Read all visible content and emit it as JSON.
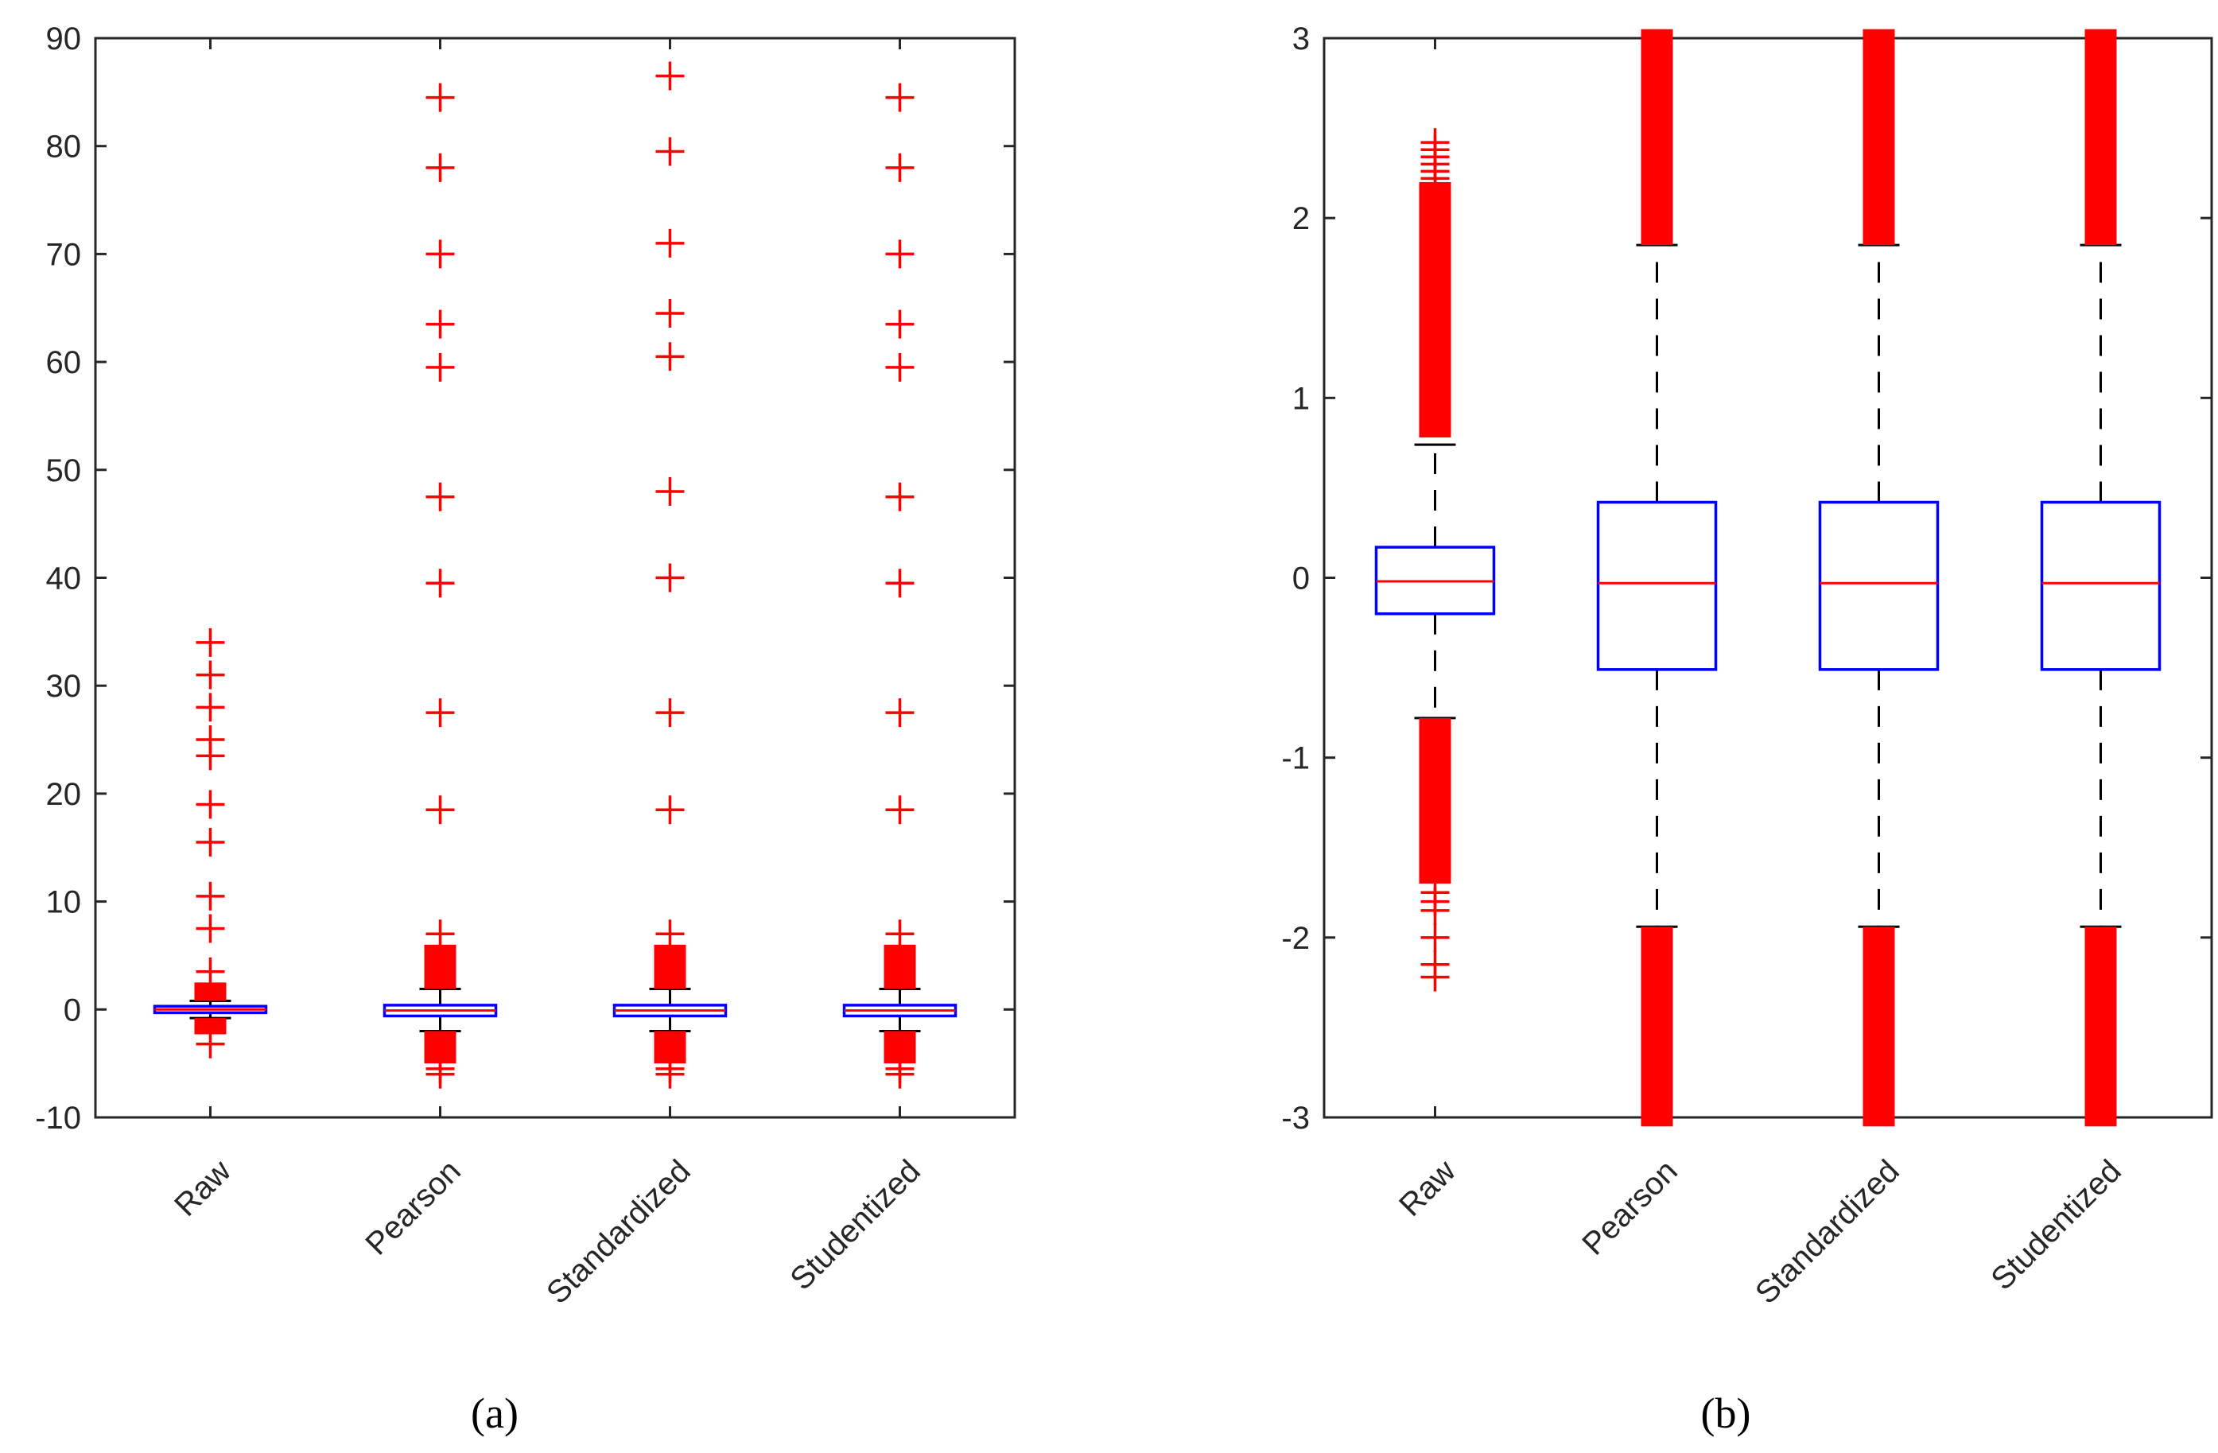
{
  "chart_data": [
    {
      "type": "box",
      "panel_label": "(a)",
      "categories": [
        "Raw",
        "Pearson",
        "Standardized",
        "Studentized"
      ],
      "ylim": [
        -10,
        90
      ],
      "yticks": [
        -10,
        0,
        10,
        20,
        30,
        40,
        50,
        60,
        70,
        80,
        90
      ],
      "xlabel": "",
      "ylabel": "",
      "title": "",
      "boxes": [
        {
          "name": "Raw",
          "q1": -0.3,
          "median": 0,
          "q3": 0.3,
          "whisker_low": -0.8,
          "whisker_high": 0.8
        },
        {
          "name": "Pearson",
          "q1": -0.6,
          "median": -0.1,
          "q3": 0.4,
          "whisker_low": -2.0,
          "whisker_high": 1.9
        },
        {
          "name": "Standardized",
          "q1": -0.6,
          "median": -0.1,
          "q3": 0.4,
          "whisker_low": -2.0,
          "whisker_high": 1.9
        },
        {
          "name": "Studentized",
          "q1": -0.6,
          "median": -0.1,
          "q3": 0.4,
          "whisker_low": -2.0,
          "whisker_high": 1.9
        }
      ],
      "outlier_bands": [
        {
          "name": "Raw",
          "ranges": [
            [
              0.8,
              2.5
            ],
            [
              -2.3,
              -0.8
            ]
          ]
        },
        {
          "name": "Pearson",
          "ranges": [
            [
              1.9,
              6.0
            ],
            [
              -5.0,
              -2.0
            ]
          ]
        },
        {
          "name": "Standardized",
          "ranges": [
            [
              1.9,
              6.0
            ],
            [
              -5.0,
              -2.0
            ]
          ]
        },
        {
          "name": "Studentized",
          "ranges": [
            [
              1.9,
              6.0
            ],
            [
              -5.0,
              -2.0
            ]
          ]
        }
      ],
      "outliers": [
        {
          "name": "Raw",
          "values": [
            34,
            31,
            28,
            25,
            23.5,
            19,
            15.5,
            10.5,
            7.5,
            3.5,
            -3.2
          ]
        },
        {
          "name": "Pearson",
          "values": [
            84.5,
            78,
            70,
            63.5,
            59.5,
            47.5,
            39.5,
            27.5,
            18.5,
            7,
            -5.5,
            -6
          ]
        },
        {
          "name": "Standardized",
          "values": [
            86.5,
            79.5,
            71,
            64.5,
            60.5,
            48,
            40,
            27.5,
            18.5,
            7,
            -5.5,
            -6
          ]
        },
        {
          "name": "Studentized",
          "values": [
            84.5,
            78,
            70,
            63.5,
            59.5,
            47.5,
            39.5,
            27.5,
            18.5,
            7,
            -5.5,
            -6
          ]
        }
      ]
    },
    {
      "type": "box",
      "panel_label": "(b)",
      "categories": [
        "Raw",
        "Pearson",
        "Standardized",
        "Studentized"
      ],
      "ylim": [
        -3,
        3
      ],
      "yticks": [
        -3,
        -2,
        -1,
        0,
        1,
        2,
        3
      ],
      "xlabel": "",
      "ylabel": "",
      "title": "",
      "boxes": [
        {
          "name": "Raw",
          "q1": -0.2,
          "median": -0.02,
          "q3": 0.17,
          "whisker_low": -0.78,
          "whisker_high": 0.74
        },
        {
          "name": "Pearson",
          "q1": -0.51,
          "median": -0.03,
          "q3": 0.42,
          "whisker_low": -1.94,
          "whisker_high": 1.85
        },
        {
          "name": "Standardized",
          "q1": -0.51,
          "median": -0.03,
          "q3": 0.42,
          "whisker_low": -1.94,
          "whisker_high": 1.85
        },
        {
          "name": "Studentized",
          "q1": -0.51,
          "median": -0.03,
          "q3": 0.42,
          "whisker_low": -1.94,
          "whisker_high": 1.85
        }
      ],
      "outlier_bands": [
        {
          "name": "Raw",
          "ranges": [
            [
              0.78,
              2.2
            ],
            [
              -1.7,
              -0.78
            ]
          ]
        },
        {
          "name": "Pearson",
          "ranges": [
            [
              1.85,
              3.05
            ],
            [
              -3.05,
              -1.94
            ]
          ]
        },
        {
          "name": "Standardized",
          "ranges": [
            [
              1.85,
              3.05
            ],
            [
              -3.05,
              -1.94
            ]
          ]
        },
        {
          "name": "Studentized",
          "ranges": [
            [
              1.85,
              3.05
            ],
            [
              -3.05,
              -1.94
            ]
          ]
        }
      ],
      "outliers": [
        {
          "name": "Raw",
          "values": [
            2.42,
            2.38,
            2.34,
            2.3,
            2.26,
            2.22,
            2.1,
            2.05,
            -1.75,
            -1.8,
            -1.85,
            -2.0,
            -2.15,
            -2.22
          ]
        },
        {
          "name": "Pearson",
          "values": []
        },
        {
          "name": "Standardized",
          "values": []
        },
        {
          "name": "Studentized",
          "values": []
        }
      ]
    }
  ]
}
